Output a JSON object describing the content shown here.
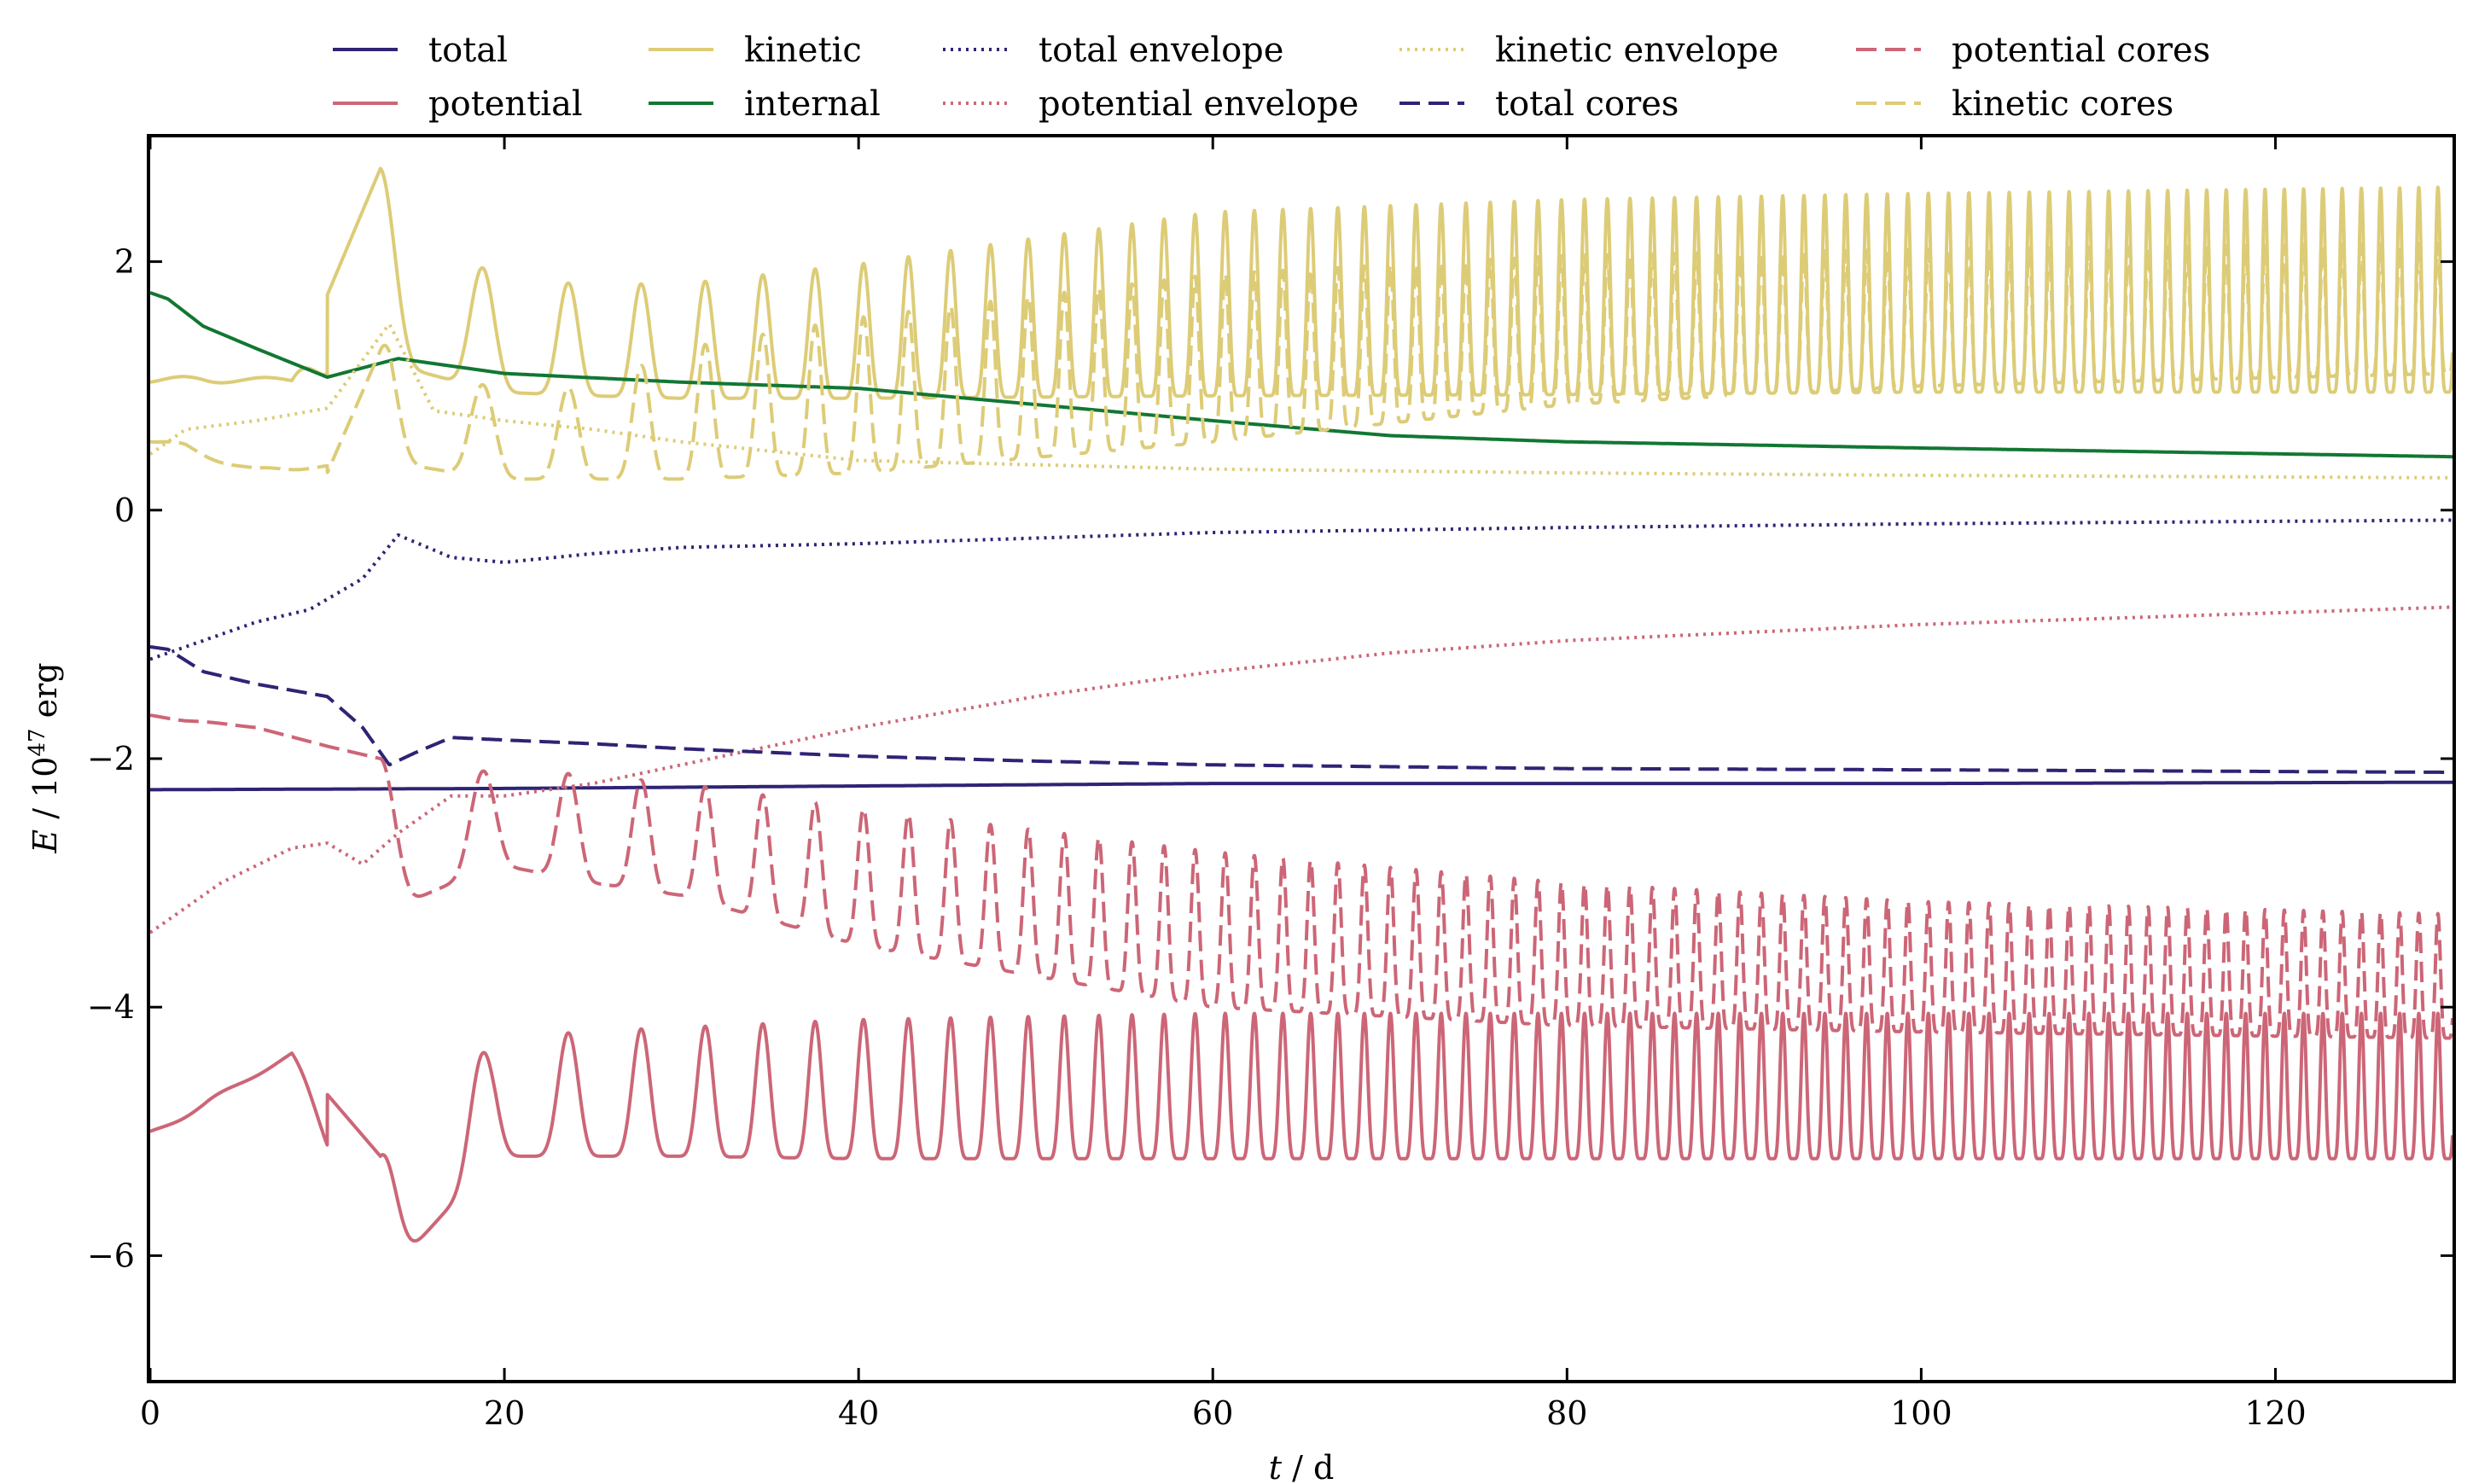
{
  "chart_data": {
    "type": "line",
    "title": "",
    "xlabel_var": "t",
    "xlabel_unit": " / d",
    "ylabel_var": "E",
    "ylabel_unit_base": " / 10",
    "ylabel_unit_exp": "47",
    "ylabel_unit_tail": " erg",
    "xlim": [
      0,
      130
    ],
    "ylim": [
      -7,
      3
    ],
    "xticks": [
      0,
      20,
      40,
      60,
      80,
      100,
      120
    ],
    "yticks": [
      -6,
      -4,
      -2,
      0,
      2
    ],
    "ytick_labels": [
      "−6",
      "−4",
      "−2",
      "0",
      "2"
    ],
    "legend_position": "top, outside plot, 6 columns x 2 rows",
    "grid": false,
    "colors": {
      "total": "#2e2474",
      "potential": "#cc6677",
      "kinetic": "#ddcc77",
      "internal": "#117733"
    },
    "oscillation_period_initial": 6.5,
    "oscillation_period_final": 1.05,
    "series": [
      {
        "name": "total",
        "style": "solid",
        "color": "#2e2474",
        "x": [
          0,
          20,
          40,
          60,
          80,
          100,
          130
        ],
        "y": [
          -2.25,
          -2.24,
          -2.22,
          -2.2,
          -2.2,
          -2.2,
          -2.19
        ]
      },
      {
        "name": "potential",
        "style": "solid",
        "color": "#cc6677",
        "peak_x": [
          0,
          3,
          8,
          13,
          17,
          22,
          27,
          32,
          40,
          60,
          80,
          100,
          130
        ],
        "peak_y": [
          -5.0,
          -4.85,
          -4.37,
          -5.2,
          -4.45,
          -4.22,
          -4.18,
          -4.15,
          -4.1,
          -4.05,
          -4.05,
          -4.05,
          -4.05
        ],
        "trough_x": [
          0,
          8,
          13,
          19.5,
          25,
          30,
          40,
          60,
          80,
          100,
          130
        ],
        "trough_y": [
          -5.0,
          -4.37,
          -6.22,
          -5.2,
          -5.2,
          -5.2,
          -5.22,
          -5.22,
          -5.22,
          -5.22,
          -5.22
        ]
      },
      {
        "name": "kinetic",
        "style": "solid",
        "color": "#ddcc77",
        "peak_x": [
          0,
          3,
          8,
          13,
          19.5,
          25,
          30,
          40,
          60,
          80,
          100,
          130
        ],
        "peak_y": [
          1.03,
          1.12,
          1.05,
          2.75,
          1.85,
          1.82,
          1.82,
          1.98,
          2.4,
          2.5,
          2.55,
          2.6
        ],
        "trough_x": [
          0,
          8,
          13,
          19.5,
          25,
          30,
          40,
          60,
          80,
          100,
          130
        ],
        "trough_y": [
          1.03,
          1.02,
          1.2,
          0.95,
          0.92,
          0.9,
          0.9,
          0.92,
          0.93,
          0.95,
          0.95
        ]
      },
      {
        "name": "internal",
        "style": "solid",
        "color": "#117733",
        "x": [
          0,
          1,
          3,
          6,
          10,
          14,
          20,
          30,
          40,
          50,
          60,
          70,
          80,
          100,
          130
        ],
        "y": [
          1.75,
          1.7,
          1.48,
          1.3,
          1.07,
          1.22,
          1.1,
          1.03,
          0.98,
          0.85,
          0.72,
          0.6,
          0.55,
          0.5,
          0.43
        ]
      },
      {
        "name": "total envelope",
        "style": "dotted",
        "color": "#2e2474",
        "x": [
          0,
          3,
          6,
          9,
          12,
          14,
          17,
          20,
          25,
          30,
          40,
          60,
          80,
          100,
          130
        ],
        "y": [
          -1.2,
          -1.05,
          -0.9,
          -0.8,
          -0.55,
          -0.2,
          -0.38,
          -0.42,
          -0.35,
          -0.3,
          -0.27,
          -0.18,
          -0.14,
          -0.11,
          -0.08
        ]
      },
      {
        "name": "potential envelope",
        "style": "dotted",
        "color": "#cc6677",
        "x": [
          0,
          4,
          8,
          10,
          12,
          14,
          17,
          20,
          25,
          30,
          35,
          40,
          50,
          60,
          70,
          80,
          100,
          130
        ],
        "y": [
          -3.4,
          -3.0,
          -2.72,
          -2.68,
          -2.85,
          -2.6,
          -2.3,
          -2.3,
          -2.2,
          -2.05,
          -1.9,
          -1.75,
          -1.5,
          -1.3,
          -1.15,
          -1.05,
          -0.92,
          -0.78
        ]
      },
      {
        "name": "kinetic envelope",
        "style": "dotted",
        "color": "#ddcc77",
        "x": [
          0,
          2,
          6,
          10,
          13.5,
          16,
          20,
          25,
          30,
          40,
          60,
          80,
          100,
          130
        ],
        "y": [
          0.45,
          0.65,
          0.72,
          0.82,
          1.5,
          0.8,
          0.72,
          0.65,
          0.55,
          0.4,
          0.33,
          0.3,
          0.28,
          0.26
        ]
      },
      {
        "name": "total cores",
        "style": "dashed",
        "color": "#2e2474",
        "x": [
          0,
          1,
          3,
          6,
          10,
          12,
          13.5,
          15,
          17,
          20,
          25,
          30,
          35,
          40,
          50,
          60,
          80,
          100,
          130
        ],
        "y": [
          -1.1,
          -1.12,
          -1.3,
          -1.4,
          -1.5,
          -1.75,
          -2.05,
          -1.95,
          -1.83,
          -1.85,
          -1.88,
          -1.92,
          -1.95,
          -1.98,
          -2.02,
          -2.05,
          -2.08,
          -2.09,
          -2.11
        ]
      },
      {
        "name": "potential cores",
        "style": "dashed",
        "color": "#cc6677",
        "peak_x": [
          0,
          2,
          6,
          10,
          16,
          22,
          30,
          40,
          60,
          80,
          100,
          130
        ],
        "peak_y": [
          -1.65,
          -1.7,
          -1.75,
          -1.9,
          -2.1,
          -2.1,
          -2.2,
          -2.4,
          -2.75,
          -3.0,
          -3.15,
          -3.25
        ],
        "trough_x": [
          0,
          6,
          10,
          13,
          19.5,
          25,
          30,
          40,
          60,
          80,
          100,
          130
        ],
        "trough_y": [
          -1.65,
          -1.75,
          -1.9,
          -3.25,
          -2.85,
          -3.0,
          -3.1,
          -3.5,
          -4.0,
          -4.15,
          -4.2,
          -4.25
        ]
      },
      {
        "name": "kinetic cores",
        "style": "dashed",
        "color": "#ddcc77",
        "peak_x": [
          0,
          2,
          6,
          10,
          13.5,
          19.5,
          25,
          30,
          40,
          60,
          80,
          100,
          130
        ],
        "peak_y": [
          0.55,
          0.55,
          0.35,
          0.3,
          1.45,
          0.95,
          1.0,
          1.3,
          1.55,
          1.9,
          2.05,
          2.1,
          2.15
        ],
        "trough_x": [
          0,
          6,
          13,
          19.5,
          25,
          30,
          40,
          60,
          80,
          100,
          130
        ],
        "trough_y": [
          0.55,
          0.3,
          0.4,
          0.25,
          0.25,
          0.25,
          0.3,
          0.55,
          0.85,
          1.0,
          1.1
        ]
      }
    ]
  }
}
